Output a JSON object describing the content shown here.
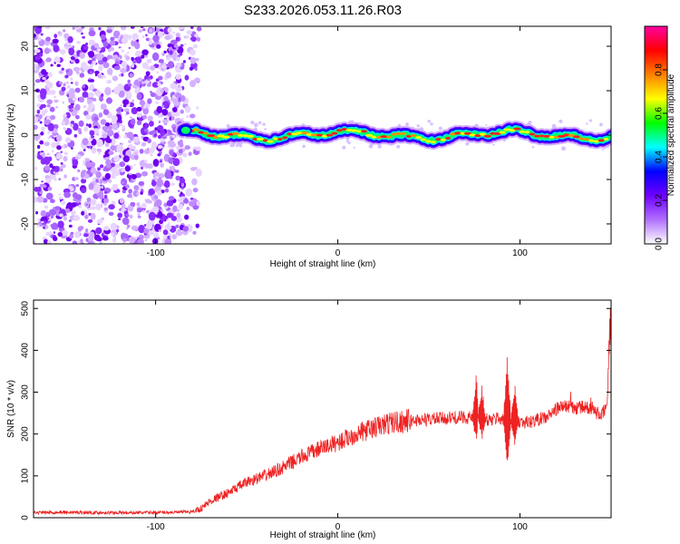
{
  "figure_title": "S233.2026.053.11.26.R03",
  "chart_data": [
    {
      "type": "heatmap",
      "title": "S233.2026.053.11.26.R03",
      "xlabel": "Height of straight line (km)",
      "ylabel": "Frequency (Hz)",
      "xlim": [
        -167,
        150
      ],
      "ylim": [
        -24.5,
        24.5
      ],
      "xticks": [
        -100,
        0,
        100
      ],
      "yticks": [
        -20,
        -10,
        0,
        10,
        20
      ],
      "noise_region_x": [
        -167,
        -76
      ],
      "signal_start_x": -85,
      "signal_frequency_hz": 0,
      "colorbar": {
        "label": "Normalized spectral amplitude",
        "range": [
          0.0,
          1.0
        ],
        "ticks": [
          "0.0",
          "0.2",
          "0.4",
          "0.6",
          "0.8"
        ],
        "colors": [
          "#ffffff",
          "#b070ff",
          "#7000ff",
          "#0000ff",
          "#00ffff",
          "#00ff00",
          "#ffff00",
          "#ff8000",
          "#ff0000",
          "#ff00a0"
        ]
      }
    },
    {
      "type": "line",
      "xlabel": "Height of straight line (km)",
      "ylabel": "SNR (10 * v/v)",
      "xlim": [
        -167,
        150
      ],
      "ylim": [
        0,
        520
      ],
      "xticks": [
        -100,
        0,
        100
      ],
      "yticks": [
        0,
        100,
        200,
        300,
        400,
        500
      ],
      "line_color": "#ee2222",
      "x": [
        -167,
        -150,
        -130,
        -110,
        -90,
        -80,
        -75,
        -70,
        -60,
        -50,
        -40,
        -30,
        -20,
        -10,
        0,
        10,
        20,
        30,
        40,
        50,
        60,
        70,
        75,
        78,
        80,
        85,
        88,
        90,
        92,
        95,
        100,
        105,
        110,
        115,
        120,
        125,
        130,
        135,
        140,
        145,
        148,
        150
      ],
      "y": [
        12,
        13,
        12,
        12,
        13,
        14,
        22,
        40,
        60,
        85,
        100,
        120,
        145,
        165,
        180,
        200,
        215,
        228,
        232,
        235,
        238,
        240,
        238,
        240,
        235,
        232,
        240,
        235,
        230,
        232,
        230,
        228,
        235,
        240,
        260,
        268,
        262,
        265,
        255,
        245,
        270,
        500
      ],
      "spikes": [
        {
          "x": 76,
          "peak": 345,
          "trough": 170
        },
        {
          "x": 79,
          "peak": 330,
          "trough": 180
        },
        {
          "x": 93,
          "peak": 425,
          "trough": 115
        },
        {
          "x": 97,
          "peak": 330,
          "trough": 170
        },
        {
          "x": 150,
          "peak": 520,
          "trough": 400
        }
      ]
    }
  ]
}
